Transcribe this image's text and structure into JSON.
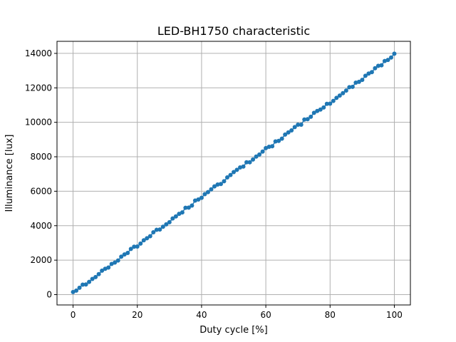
{
  "chart_data": {
    "type": "line",
    "title": "LED-BH1750 characteristic",
    "xlabel": "Duty cycle [%]",
    "ylabel": "Illuminance [lux]",
    "xlim": [
      -5,
      105
    ],
    "ylim": [
      -600,
      14700
    ],
    "grid": true,
    "x_ticks": [
      0,
      20,
      40,
      60,
      80,
      100
    ],
    "x_tick_labels": [
      "0",
      "20",
      "40",
      "60",
      "80",
      "100"
    ],
    "y_ticks": [
      0,
      2000,
      4000,
      6000,
      8000,
      10000,
      12000,
      14000
    ],
    "y_tick_labels": [
      "0",
      "2000",
      "4000",
      "6000",
      "8000",
      "10000",
      "12000",
      "14000"
    ],
    "series": [
      {
        "color": "#1f77b4",
        "marker": "circle",
        "x": [
          0,
          1,
          2,
          3,
          4,
          5,
          6,
          7,
          8,
          9,
          10,
          11,
          12,
          13,
          14,
          15,
          16,
          17,
          18,
          19,
          20,
          21,
          22,
          23,
          24,
          25,
          26,
          27,
          28,
          29,
          30,
          31,
          32,
          33,
          34,
          35,
          36,
          37,
          38,
          39,
          40,
          41,
          42,
          43,
          44,
          45,
          46,
          47,
          48,
          49,
          50,
          51,
          52,
          53,
          54,
          55,
          56,
          57,
          58,
          59,
          60,
          61,
          62,
          63,
          64,
          65,
          66,
          67,
          68,
          69,
          70,
          71,
          72,
          73,
          74,
          75,
          76,
          77,
          78,
          79,
          80,
          81,
          82,
          83,
          84,
          85,
          86,
          87,
          88,
          89,
          90,
          91,
          92,
          93,
          94,
          95,
          96,
          97,
          98,
          99,
          100
        ],
        "y": [
          150,
          230,
          400,
          580,
          590,
          740,
          910,
          1020,
          1190,
          1390,
          1500,
          1570,
          1780,
          1860,
          1980,
          2200,
          2330,
          2420,
          2650,
          2780,
          2790,
          2960,
          3150,
          3270,
          3390,
          3620,
          3760,
          3780,
          3940,
          4080,
          4200,
          4420,
          4540,
          4690,
          4770,
          5040,
          5050,
          5170,
          5460,
          5520,
          5620,
          5830,
          5950,
          6110,
          6280,
          6390,
          6420,
          6580,
          6800,
          6940,
          7110,
          7240,
          7380,
          7430,
          7680,
          7680,
          7840,
          8010,
          8130,
          8300,
          8500,
          8580,
          8610,
          8890,
          8920,
          9050,
          9290,
          9410,
          9530,
          9720,
          9860,
          9860,
          10160,
          10180,
          10320,
          10550,
          10660,
          10740,
          10860,
          11070,
          11080,
          11240,
          11420,
          11550,
          11690,
          11840,
          12040,
          12060,
          12300,
          12350,
          12460,
          12700,
          12830,
          12910,
          13140,
          13280,
          13310,
          13560,
          13620,
          13760,
          13980
        ]
      }
    ]
  }
}
